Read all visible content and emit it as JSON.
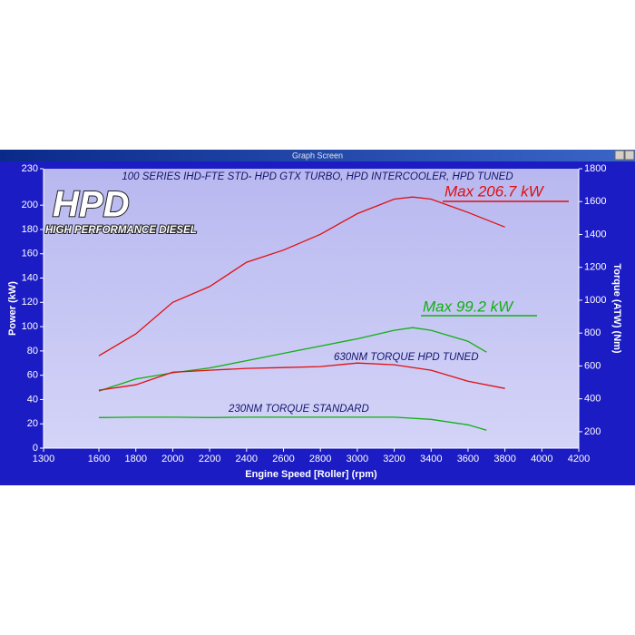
{
  "chart_data": {
    "type": "line",
    "window_title": "Graph Screen",
    "title": "100 SERIES IHD-FTE STD- HPD GTX TURBO, HPD INTERCOOLER, HPD TUNED",
    "logo": {
      "title": "HPD",
      "subtitle": "HIGH PERFORMANCE DIESEL"
    },
    "xlabel": "Engine Speed [Roller] (rpm)",
    "ylabel": "Power (kW)",
    "y2label": "Torque (ATW) (Nm)",
    "xlim": [
      1300,
      4200
    ],
    "xticks": [
      1300,
      1600,
      1800,
      2000,
      2200,
      2400,
      2600,
      2800,
      3000,
      3200,
      3400,
      3600,
      3800,
      4000,
      4200
    ],
    "ylim": [
      0,
      230
    ],
    "yticks": [
      0,
      20,
      40,
      60,
      80,
      100,
      120,
      140,
      160,
      180,
      200,
      230
    ],
    "y2lim": [
      100,
      1800
    ],
    "y2ticks": [
      200,
      400,
      600,
      800,
      1000,
      1200,
      1400,
      1600,
      1800
    ],
    "series": [
      {
        "color": "#e01010",
        "x": [
          1600,
          1800,
          2000,
          2200,
          2400,
          2600,
          2800,
          3000,
          3200,
          3300,
          3400,
          3600,
          3800
        ],
        "values": [
          76,
          94,
          120,
          133,
          153,
          163,
          176,
          193,
          205,
          206.7,
          205,
          194,
          182
        ]
      },
      {
        "color": "#10b010",
        "x": [
          1600,
          1800,
          2000,
          2200,
          2400,
          2600,
          2800,
          3000,
          3200,
          3300,
          3400,
          3600,
          3700
        ],
        "values": [
          47,
          57,
          62,
          66,
          72,
          78,
          84,
          90,
          97,
          99.2,
          97,
          88,
          79
        ]
      },
      {
        "color": "#e01010",
        "axis": "y2",
        "x": [
          1600,
          1800,
          2000,
          2200,
          2400,
          2600,
          2800,
          3000,
          3200,
          3400,
          3600,
          3800
        ],
        "values": [
          452,
          485,
          562,
          574,
          585,
          590,
          596,
          618,
          607,
          574,
          507,
          463
        ]
      },
      {
        "color": "#10b010",
        "axis": "y2",
        "x": [
          1600,
          1800,
          2000,
          2200,
          2400,
          2600,
          2800,
          3000,
          3200,
          3400,
          3600,
          3700
        ],
        "values": [
          286,
          288,
          288,
          286,
          288,
          288,
          288,
          288,
          288,
          275,
          242,
          209
        ]
      }
    ],
    "annotations": [
      {
        "text": "Max 206.7 kW",
        "color": "#e01010"
      },
      {
        "text": "Max 99.2 kW",
        "color": "#10b010"
      },
      {
        "text": "630NM TORQUE HPD TUNED",
        "color": "#14146e"
      },
      {
        "text": "230NM TORQUE STANDARD",
        "color": "#14146e"
      }
    ]
  }
}
